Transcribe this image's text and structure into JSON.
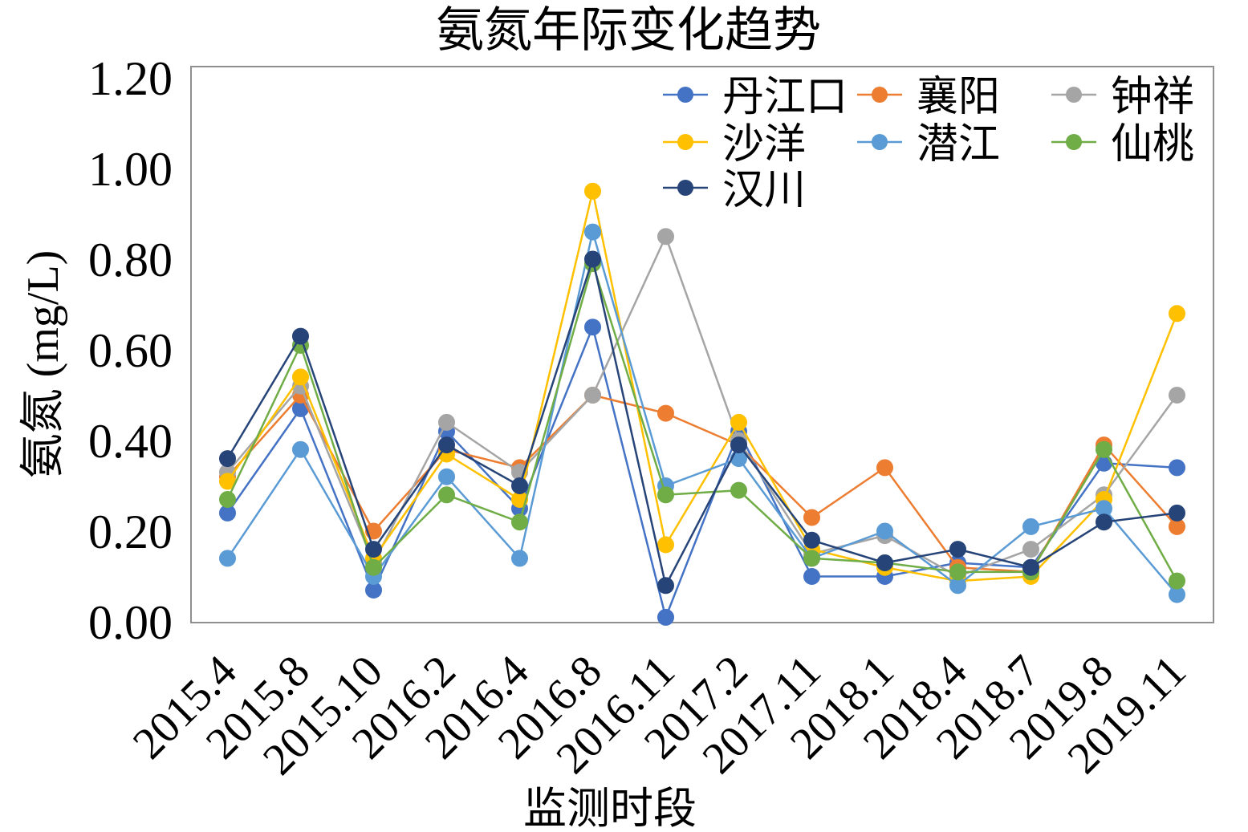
{
  "chart_data": {
    "type": "line",
    "title": "氨氮年际变化趋势",
    "xlabel": "监测时段",
    "ylabel": "氨氮 (mg/L)",
    "categories": [
      "2015.4",
      "2015.8",
      "2015.10",
      "2016.2",
      "2016.4",
      "2016.8",
      "2016.11",
      "2017.2",
      "2017.11",
      "2018.1",
      "2018.4",
      "2018.7",
      "2019.8",
      "2019.11"
    ],
    "ylim": [
      0,
      1.2
    ],
    "yticks": [
      "0.00",
      "0.20",
      "0.40",
      "0.60",
      "0.80",
      "1.00",
      "1.20"
    ],
    "grid": false,
    "legend_position": "top-right",
    "series": [
      {
        "name": "丹江口",
        "color": "#4472C4",
        "values": [
          0.24,
          0.47,
          0.07,
          0.42,
          0.25,
          0.65,
          0.01,
          0.42,
          0.1,
          0.1,
          0.13,
          0.12,
          0.35,
          0.34
        ]
      },
      {
        "name": "襄阳",
        "color": "#ED7D31",
        "values": [
          0.32,
          0.5,
          0.2,
          0.38,
          0.34,
          0.5,
          0.46,
          0.39,
          0.23,
          0.34,
          0.12,
          0.11,
          0.39,
          0.21
        ]
      },
      {
        "name": "钟祥",
        "color": "#A5A5A5",
        "values": [
          0.33,
          0.52,
          0.13,
          0.44,
          0.33,
          0.5,
          0.85,
          0.4,
          0.15,
          0.19,
          0.1,
          0.16,
          0.28,
          0.5
        ]
      },
      {
        "name": "沙洋",
        "color": "#FFC000",
        "values": [
          0.31,
          0.54,
          0.14,
          0.37,
          0.27,
          0.95,
          0.17,
          0.44,
          0.16,
          0.12,
          0.09,
          0.1,
          0.27,
          0.68
        ]
      },
      {
        "name": "潜江",
        "color": "#5B9BD5",
        "values": [
          0.14,
          0.38,
          0.1,
          0.32,
          0.14,
          0.86,
          0.3,
          0.36,
          0.14,
          0.2,
          0.08,
          0.21,
          0.25,
          0.06
        ]
      },
      {
        "name": "仙桃",
        "color": "#70AD47",
        "values": [
          0.27,
          0.61,
          0.12,
          0.28,
          0.22,
          0.79,
          0.28,
          0.29,
          0.14,
          0.13,
          0.11,
          0.11,
          0.38,
          0.09
        ]
      },
      {
        "name": "汉川",
        "color": "#264478",
        "values": [
          0.36,
          0.63,
          0.16,
          0.39,
          0.3,
          0.8,
          0.08,
          0.39,
          0.18,
          0.13,
          0.16,
          0.12,
          0.22,
          0.24
        ]
      }
    ]
  }
}
